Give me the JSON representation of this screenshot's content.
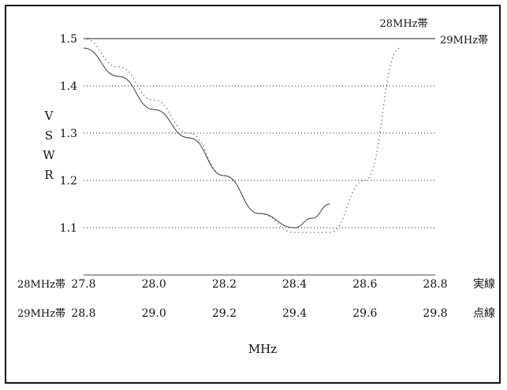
{
  "chart_data": {
    "type": "line",
    "ylabel": "VSWR",
    "xlabel": "MHz",
    "ylim": [
      1.0,
      1.5
    ],
    "yticks": [
      "1.5",
      "1.4",
      "1.3",
      "1.2",
      "1.1"
    ],
    "axis_rows": [
      {
        "band": "28MHz帯",
        "ticks": [
          "27.8",
          "28.0",
          "28.2",
          "28.4",
          "28.6",
          "28.8"
        ],
        "line_style": "実線"
      },
      {
        "band": "29MHz帯",
        "ticks": [
          "28.8",
          "29.0",
          "29.2",
          "29.4",
          "29.6",
          "29.8"
        ],
        "line_style": "点線"
      }
    ],
    "series": [
      {
        "name": "28MHz帯",
        "style": "solid",
        "x": [
          27.8,
          27.9,
          28.0,
          28.1,
          28.2,
          28.3,
          28.4,
          28.45,
          28.5
        ],
        "values": [
          1.48,
          1.42,
          1.35,
          1.29,
          1.21,
          1.13,
          1.1,
          1.12,
          1.15
        ]
      },
      {
        "name": "29MHz帯",
        "style": "dotted",
        "x": [
          28.8,
          28.9,
          29.0,
          29.1,
          29.2,
          29.3,
          29.4,
          29.5,
          29.6,
          29.7
        ],
        "values": [
          1.5,
          1.44,
          1.37,
          1.3,
          1.21,
          1.13,
          1.09,
          1.09,
          1.2,
          1.48
        ]
      }
    ],
    "legend": [
      {
        "label": "28MHz帯",
        "series": 0
      },
      {
        "label": "29MHz帯",
        "series": 1
      }
    ],
    "grid": true
  }
}
